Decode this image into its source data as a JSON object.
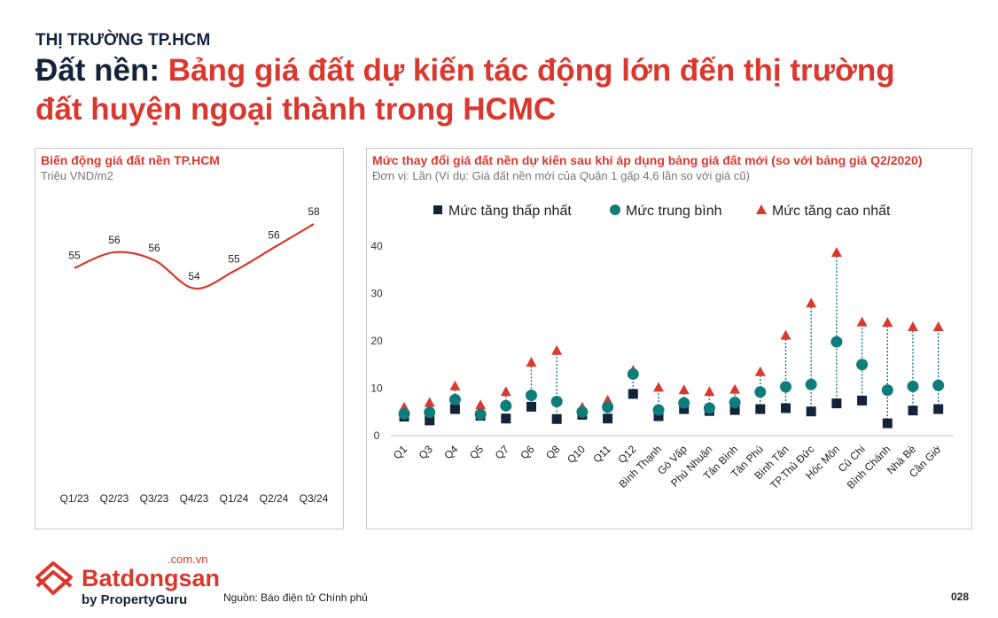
{
  "header": {
    "kicker": "THỊ TRƯỜNG TP.HCM",
    "title_prefix": "Đất nền:",
    "title_main": " Bảng giá đất dự kiến tác động lớn đến thị trường đất huyện ngoại thành trong HCMC"
  },
  "footer": {
    "logo_word": "Batdongsan",
    "logo_domain": ".com.vn",
    "logo_by": "by PropertyGuru",
    "source": "Nguồn: Báo điện tử Chính phủ",
    "page_number": "028"
  },
  "colors": {
    "red": "#d9382e",
    "navy": "#13243a",
    "teal": "#0e7c7b"
  },
  "chart_data": [
    {
      "type": "line",
      "title": "Biến động giá đất nền TP.HCM",
      "ylabel": "Triệu VND/m2",
      "categories": [
        "Q1/23",
        "Q2/23",
        "Q3/23",
        "Q4/23",
        "Q1/24",
        "Q2/24",
        "Q3/24"
      ],
      "values": [
        55.2,
        56.2,
        55.7,
        53.9,
        55.0,
        56.5,
        58.0
      ],
      "labels": [
        "55",
        "56",
        "56",
        "54",
        "55",
        "56",
        "58"
      ],
      "grid": false
    },
    {
      "type": "scatter",
      "title": "Mức thay đổi giá đất nền dự kiến sau khi áp dụng bảng giá đất mới (so với bảng giá Q2/2020)",
      "subtitle": "Đơn vị: Lần (Ví dụ: Giá đất nền mới của Quận 1 gấp 4,6 lần so với giá cũ)",
      "legend_position": "top",
      "ylim": [
        0,
        40
      ],
      "yticks": [
        "0",
        "10",
        "20",
        "30",
        "40"
      ],
      "categories": [
        "Q1",
        "Q3",
        "Q4",
        "Q5",
        "Q7",
        "Q6",
        "Q8",
        "Q10",
        "Q11",
        "Q12",
        "Bình Thạnh",
        "Gò Vấp",
        "Phú Nhuận",
        "Tân Bình",
        "Tân Phú",
        "Bình Tân",
        "TP.Thủ Đức",
        "Hóc Môn",
        "Củ Chi",
        "Bình Chánh",
        "Nhà Bè",
        "Cần Giờ"
      ],
      "series": [
        {
          "name": "Mức tăng thấp nhất",
          "marker": "square",
          "values": [
            4.0,
            3.2,
            5.6,
            4.2,
            3.6,
            6.1,
            3.5,
            4.4,
            3.6,
            8.8,
            4.1,
            5.6,
            5.2,
            5.4,
            5.6,
            5.8,
            5.1,
            6.8,
            7.4,
            2.6,
            5.3,
            5.6
          ]
        },
        {
          "name": "Mức trung bình",
          "marker": "circle",
          "values": [
            4.6,
            4.9,
            7.6,
            4.5,
            6.3,
            8.5,
            7.2,
            5.0,
            6.0,
            13.0,
            5.4,
            6.9,
            5.8,
            7.0,
            9.2,
            10.3,
            10.8,
            19.8,
            15.0,
            9.6,
            10.4,
            10.6
          ]
        },
        {
          "name": "Mức tăng cao nhất",
          "marker": "triangle",
          "values": [
            6.0,
            7.0,
            10.5,
            6.5,
            9.3,
            15.5,
            18.0,
            6.0,
            7.5,
            13.8,
            10.2,
            9.7,
            9.3,
            9.8,
            13.5,
            21.2,
            28.0,
            38.7,
            24.0,
            23.9,
            23.0,
            23.0
          ]
        }
      ]
    }
  ]
}
